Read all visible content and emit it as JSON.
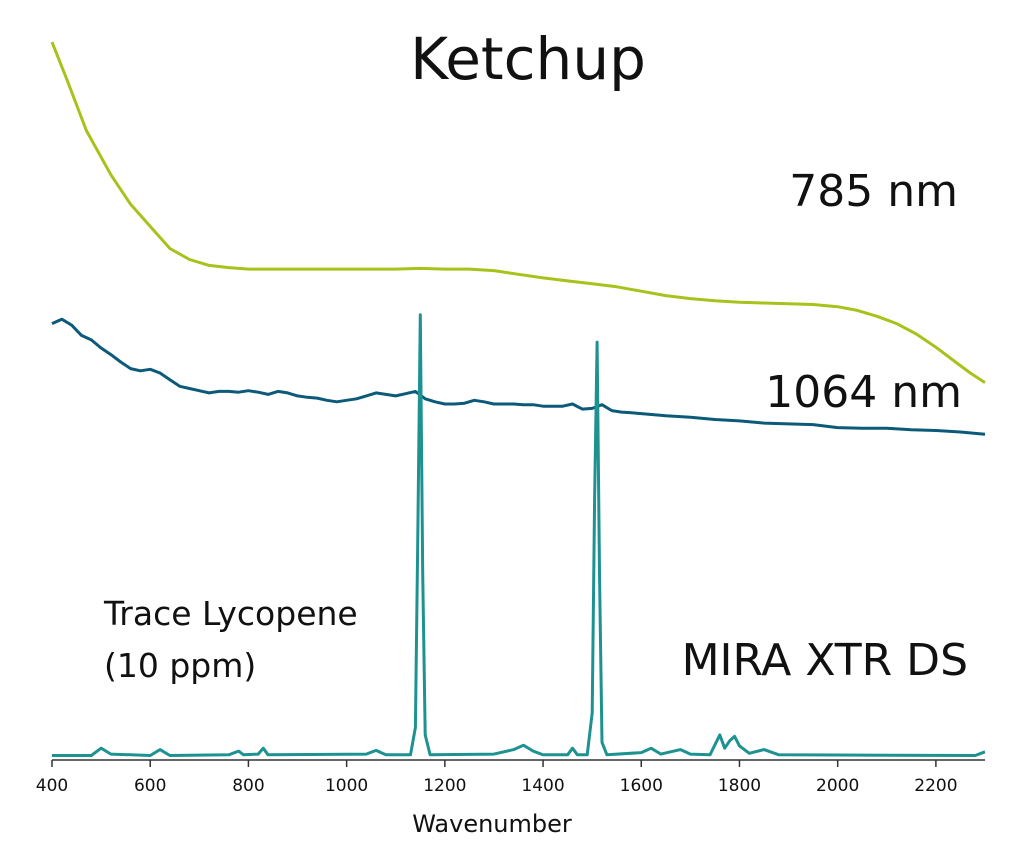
{
  "chart_data": {
    "type": "line",
    "title": "Ketchup",
    "xlabel": "Wavenumber",
    "ylabel": "",
    "xlim": [
      400,
      2300
    ],
    "xticks": [
      400,
      600,
      800,
      1000,
      1200,
      1400,
      1600,
      1800,
      2000,
      2200
    ],
    "yticks_shown": false,
    "grid": false,
    "legend": "none",
    "series": [
      {
        "name": "785 nm",
        "color": "#a6c31c",
        "values": [
          [
            400,
            0.97
          ],
          [
            430,
            0.92
          ],
          [
            470,
            0.85
          ],
          [
            520,
            0.79
          ],
          [
            560,
            0.75
          ],
          [
            600,
            0.72
          ],
          [
            640,
            0.69
          ],
          [
            680,
            0.675
          ],
          [
            720,
            0.667
          ],
          [
            760,
            0.664
          ],
          [
            800,
            0.662
          ],
          [
            900,
            0.662
          ],
          [
            1000,
            0.662
          ],
          [
            1100,
            0.662
          ],
          [
            1150,
            0.663
          ],
          [
            1200,
            0.662
          ],
          [
            1250,
            0.662
          ],
          [
            1300,
            0.66
          ],
          [
            1350,
            0.655
          ],
          [
            1400,
            0.65
          ],
          [
            1450,
            0.646
          ],
          [
            1500,
            0.642
          ],
          [
            1550,
            0.638
          ],
          [
            1600,
            0.632
          ],
          [
            1650,
            0.626
          ],
          [
            1700,
            0.622
          ],
          [
            1750,
            0.619
          ],
          [
            1800,
            0.617
          ],
          [
            1850,
            0.616
          ],
          [
            1900,
            0.615
          ],
          [
            1950,
            0.614
          ],
          [
            2000,
            0.611
          ],
          [
            2040,
            0.606
          ],
          [
            2080,
            0.598
          ],
          [
            2120,
            0.588
          ],
          [
            2160,
            0.574
          ],
          [
            2200,
            0.556
          ],
          [
            2240,
            0.536
          ],
          [
            2270,
            0.521
          ],
          [
            2300,
            0.508
          ]
        ]
      },
      {
        "name": "1064 nm",
        "color": "#0b5a79",
        "values": [
          [
            400,
            0.588
          ],
          [
            420,
            0.594
          ],
          [
            440,
            0.586
          ],
          [
            460,
            0.572
          ],
          [
            480,
            0.566
          ],
          [
            500,
            0.555
          ],
          [
            520,
            0.546
          ],
          [
            540,
            0.536
          ],
          [
            560,
            0.527
          ],
          [
            580,
            0.524
          ],
          [
            600,
            0.526
          ],
          [
            620,
            0.521
          ],
          [
            640,
            0.512
          ],
          [
            660,
            0.503
          ],
          [
            680,
            0.5
          ],
          [
            700,
            0.497
          ],
          [
            720,
            0.494
          ],
          [
            740,
            0.496
          ],
          [
            760,
            0.496
          ],
          [
            780,
            0.495
          ],
          [
            800,
            0.497
          ],
          [
            820,
            0.495
          ],
          [
            840,
            0.492
          ],
          [
            860,
            0.496
          ],
          [
            880,
            0.494
          ],
          [
            900,
            0.49
          ],
          [
            920,
            0.488
          ],
          [
            940,
            0.487
          ],
          [
            960,
            0.484
          ],
          [
            980,
            0.482
          ],
          [
            1000,
            0.484
          ],
          [
            1020,
            0.486
          ],
          [
            1040,
            0.49
          ],
          [
            1060,
            0.494
          ],
          [
            1080,
            0.492
          ],
          [
            1100,
            0.49
          ],
          [
            1120,
            0.493
          ],
          [
            1140,
            0.496
          ],
          [
            1160,
            0.486
          ],
          [
            1180,
            0.482
          ],
          [
            1200,
            0.479
          ],
          [
            1220,
            0.479
          ],
          [
            1240,
            0.48
          ],
          [
            1260,
            0.484
          ],
          [
            1280,
            0.482
          ],
          [
            1300,
            0.479
          ],
          [
            1320,
            0.479
          ],
          [
            1340,
            0.479
          ],
          [
            1360,
            0.478
          ],
          [
            1380,
            0.478
          ],
          [
            1400,
            0.476
          ],
          [
            1420,
            0.476
          ],
          [
            1440,
            0.476
          ],
          [
            1460,
            0.479
          ],
          [
            1480,
            0.472
          ],
          [
            1500,
            0.473
          ],
          [
            1520,
            0.478
          ],
          [
            1540,
            0.47
          ],
          [
            1560,
            0.468
          ],
          [
            1580,
            0.467
          ],
          [
            1600,
            0.466
          ],
          [
            1650,
            0.463
          ],
          [
            1700,
            0.461
          ],
          [
            1750,
            0.458
          ],
          [
            1800,
            0.456
          ],
          [
            1850,
            0.453
          ],
          [
            1900,
            0.452
          ],
          [
            1950,
            0.451
          ],
          [
            2000,
            0.447
          ],
          [
            2050,
            0.446
          ],
          [
            2100,
            0.446
          ],
          [
            2150,
            0.444
          ],
          [
            2200,
            0.443
          ],
          [
            2250,
            0.441
          ],
          [
            2300,
            0.438
          ]
        ]
      },
      {
        "name": "MIRA XTR DS",
        "color": "#1e9291",
        "values": [
          [
            400,
            0.002
          ],
          [
            480,
            0.002
          ],
          [
            500,
            0.012
          ],
          [
            520,
            0.004
          ],
          [
            600,
            0.002
          ],
          [
            620,
            0.01
          ],
          [
            640,
            0.002
          ],
          [
            760,
            0.003
          ],
          [
            780,
            0.008
          ],
          [
            790,
            0.003
          ],
          [
            820,
            0.004
          ],
          [
            830,
            0.012
          ],
          [
            840,
            0.003
          ],
          [
            1040,
            0.004
          ],
          [
            1060,
            0.009
          ],
          [
            1080,
            0.003
          ],
          [
            1130,
            0.003
          ],
          [
            1140,
            0.04
          ],
          [
            1145,
            0.3
          ],
          [
            1150,
            0.6
          ],
          [
            1155,
            0.25
          ],
          [
            1160,
            0.03
          ],
          [
            1170,
            0.003
          ],
          [
            1300,
            0.004
          ],
          [
            1340,
            0.01
          ],
          [
            1360,
            0.016
          ],
          [
            1380,
            0.008
          ],
          [
            1400,
            0.003
          ],
          [
            1450,
            0.003
          ],
          [
            1460,
            0.012
          ],
          [
            1470,
            0.003
          ],
          [
            1490,
            0.003
          ],
          [
            1500,
            0.06
          ],
          [
            1505,
            0.35
          ],
          [
            1510,
            0.563
          ],
          [
            1515,
            0.25
          ],
          [
            1520,
            0.02
          ],
          [
            1530,
            0.003
          ],
          [
            1600,
            0.006
          ],
          [
            1620,
            0.012
          ],
          [
            1640,
            0.004
          ],
          [
            1680,
            0.01
          ],
          [
            1700,
            0.004
          ],
          [
            1740,
            0.003
          ],
          [
            1760,
            0.03
          ],
          [
            1770,
            0.012
          ],
          [
            1780,
            0.022
          ],
          [
            1790,
            0.028
          ],
          [
            1800,
            0.015
          ],
          [
            1820,
            0.005
          ],
          [
            1850,
            0.01
          ],
          [
            1880,
            0.003
          ],
          [
            2280,
            0.002
          ],
          [
            2300,
            0.007
          ]
        ]
      }
    ],
    "annotations": [
      "Trace Lycopene",
      "(10 ppm)"
    ]
  }
}
